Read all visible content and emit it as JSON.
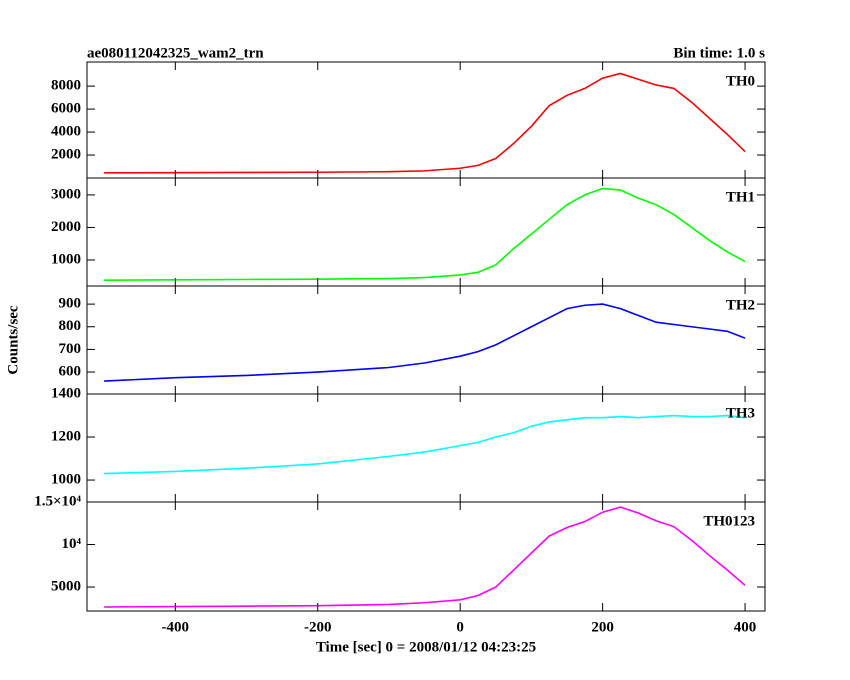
{
  "chart_data": [
    {
      "type": "line",
      "title": "ae080112042325_wam2_trn",
      "subtitle": "Bin time: 1.0 s",
      "label": "TH0",
      "x": [
        -500,
        -400,
        -300,
        -200,
        -100,
        -50,
        0,
        25,
        50,
        75,
        100,
        125,
        150,
        175,
        200,
        225,
        250,
        275,
        300,
        325,
        350,
        375,
        400
      ],
      "series": [
        {
          "color": "#ff0000",
          "values": [
            450,
            460,
            480,
            500,
            550,
            620,
            850,
            1100,
            1700,
            3000,
            4500,
            6300,
            7200,
            7800,
            8700,
            9100,
            8600,
            8100,
            7800,
            6600,
            5200,
            3800,
            2300
          ]
        }
      ],
      "xlim": [
        -524,
        428
      ],
      "ylim": [
        0,
        10100
      ],
      "yticks": [
        2000,
        4000,
        6000,
        8000
      ]
    },
    {
      "type": "line",
      "label": "TH1",
      "x": [
        -500,
        -400,
        -300,
        -200,
        -100,
        -50,
        0,
        25,
        50,
        75,
        100,
        125,
        150,
        175,
        200,
        225,
        250,
        275,
        300,
        325,
        350,
        375,
        400
      ],
      "series": [
        {
          "color": "#00ff00",
          "values": [
            380,
            390,
            400,
            410,
            430,
            460,
            540,
            620,
            850,
            1350,
            1800,
            2250,
            2700,
            3000,
            3200,
            3150,
            2900,
            2700,
            2400,
            2000,
            1600,
            1250,
            950
          ]
        }
      ],
      "xlim": [
        -524,
        428
      ],
      "ylim": [
        200,
        3520
      ],
      "yticks": [
        1000,
        2000,
        3000
      ]
    },
    {
      "type": "line",
      "label": "TH2",
      "ylabel": "Counts/sec",
      "x": [
        -500,
        -400,
        -300,
        -200,
        -100,
        -50,
        0,
        25,
        50,
        75,
        100,
        125,
        150,
        175,
        200,
        225,
        250,
        275,
        300,
        325,
        350,
        375,
        400
      ],
      "series": [
        {
          "color": "#0000ff",
          "values": [
            560,
            575,
            585,
            600,
            620,
            640,
            670,
            690,
            720,
            760,
            800,
            840,
            880,
            895,
            900,
            880,
            850,
            820,
            810,
            800,
            790,
            780,
            750
          ]
        }
      ],
      "xlim": [
        -524,
        428
      ],
      "ylim": [
        503,
        980
      ],
      "yticks": [
        600,
        700,
        800,
        900
      ]
    },
    {
      "type": "line",
      "label": "TH3",
      "x": [
        -500,
        -400,
        -300,
        -200,
        -100,
        -50,
        0,
        25,
        50,
        75,
        100,
        125,
        150,
        175,
        200,
        225,
        250,
        275,
        300,
        325,
        350,
        375,
        400
      ],
      "series": [
        {
          "color": "#00ffff",
          "values": [
            1030,
            1040,
            1055,
            1075,
            1110,
            1130,
            1160,
            1175,
            1200,
            1220,
            1250,
            1270,
            1280,
            1290,
            1290,
            1295,
            1290,
            1295,
            1300,
            1295,
            1295,
            1300,
            1290
          ]
        }
      ],
      "xlim": [
        -524,
        428
      ],
      "ylim": [
        898,
        1400
      ],
      "yticks": [
        1000,
        1200,
        1400
      ]
    },
    {
      "type": "line",
      "label": "TH0123",
      "xlabel": "Time [sec] 0 = 2008/01/12 04:23:25",
      "x": [
        -500,
        -400,
        -300,
        -200,
        -100,
        -50,
        0,
        25,
        50,
        75,
        100,
        125,
        150,
        175,
        200,
        225,
        250,
        275,
        300,
        325,
        350,
        375,
        400
      ],
      "series": [
        {
          "color": "#ff00ff",
          "values": [
            2650,
            2700,
            2750,
            2800,
            2950,
            3150,
            3500,
            4000,
            5000,
            7000,
            9000,
            11000,
            12000,
            12700,
            13800,
            14400,
            13700,
            12800,
            12100,
            10500,
            8700,
            7000,
            5200
          ]
        }
      ],
      "xlim": [
        -524,
        428
      ],
      "ylim": [
        2180,
        15000
      ],
      "yticks": [
        5000,
        {
          "value": 10000,
          "label": "10⁴"
        },
        {
          "value": 15000,
          "label": "1.5×10⁴"
        }
      ],
      "xticks": [
        -400,
        -200,
        0,
        200,
        400
      ]
    }
  ]
}
